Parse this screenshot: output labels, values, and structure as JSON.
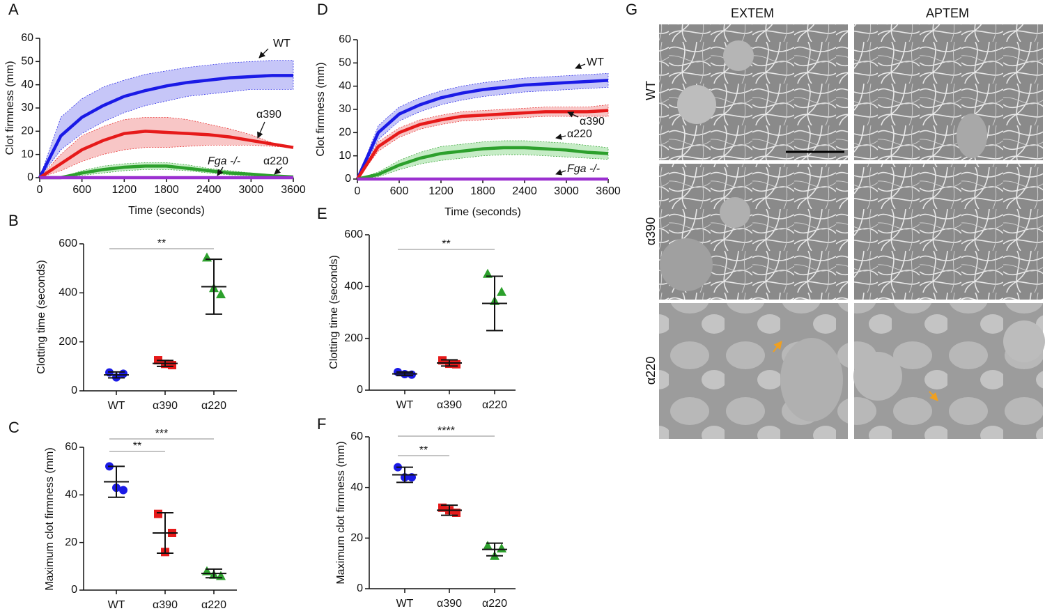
{
  "chart_data": [
    {
      "panel": "A",
      "type": "line",
      "x_label": "Time (seconds)",
      "y_label": "Clot firmness (mm)",
      "xlim": [
        0,
        3600
      ],
      "ylim": [
        0,
        60
      ],
      "xticks": [
        0,
        600,
        1200,
        1800,
        2400,
        3000,
        3600
      ],
      "yticks": [
        0,
        10,
        20,
        30,
        40,
        50,
        60
      ],
      "x": [
        0,
        300,
        600,
        900,
        1200,
        1500,
        1800,
        2100,
        2400,
        2700,
        3000,
        3300,
        3600
      ],
      "series": [
        {
          "name": "WT",
          "color": "#1a1ae6",
          "band_color": "#b3b3f5",
          "values": [
            0,
            18,
            26,
            31,
            35,
            37.5,
            39.5,
            41,
            42,
            43,
            43.5,
            44,
            44
          ],
          "band_low": [
            0,
            12,
            19,
            24,
            28,
            31,
            33,
            35,
            36,
            37,
            38,
            38,
            38
          ],
          "band_high": [
            0,
            26,
            34,
            39,
            42,
            44.5,
            46,
            47.5,
            48.5,
            49.5,
            50,
            50.5,
            50.5
          ]
        },
        {
          "name": "α390",
          "color": "#e61a1a",
          "band_color": "#f5b3b3",
          "values": [
            0,
            6,
            12,
            16,
            19,
            20,
            19.5,
            19,
            18.5,
            17.5,
            16,
            14.5,
            13
          ],
          "band_low": [
            0,
            3,
            7,
            10,
            12,
            13,
            13,
            13.5,
            14,
            14,
            14,
            13.5,
            13
          ],
          "band_high": [
            0,
            10,
            18,
            22,
            25,
            26,
            26,
            25,
            23,
            21,
            18.5,
            15,
            13
          ]
        },
        {
          "name": "α220",
          "color": "#2ca02c",
          "band_color": "#b3e6b3",
          "values": [
            0,
            0,
            2,
            3.5,
            4.5,
            5,
            5,
            4,
            3,
            2,
            1.5,
            0.8,
            0.3
          ],
          "band_low": [
            0,
            0,
            1,
            2,
            3,
            3.5,
            3.5,
            3,
            2,
            1.2,
            0.8,
            0.3,
            0
          ],
          "band_high": [
            0,
            0,
            3,
            5,
            6,
            6.5,
            6.5,
            5.5,
            4,
            3,
            2,
            1.2,
            0.5
          ]
        },
        {
          "name": "Fga -/-",
          "color": "#9b30d0",
          "values": [
            0,
            0,
            0,
            0,
            0,
            0,
            0,
            0,
            0,
            0,
            0,
            0,
            0
          ]
        }
      ]
    },
    {
      "panel": "B",
      "type": "dot",
      "y_label": "Clotting time (seconds)",
      "ylim": [
        0,
        600
      ],
      "yticks": [
        0,
        200,
        400,
        600
      ],
      "categories": [
        "WT",
        "α390",
        "α220"
      ],
      "colors": [
        "#1a1ae6",
        "#e61a1a",
        "#2ca02c"
      ],
      "markers": [
        "circle",
        "square",
        "triangle"
      ],
      "points": [
        [
          75,
          70,
          55
        ],
        [
          125,
          105,
          110
        ],
        [
          545,
          395,
          420
        ]
      ],
      "means": [
        65,
        112,
        425
      ],
      "sds": [
        12,
        12,
        112
      ],
      "significance": [
        {
          "from": 0,
          "to": 2,
          "label": "**"
        }
      ]
    },
    {
      "panel": "C",
      "type": "dot",
      "y_label": "Maximum clot firmness (mm)",
      "ylim": [
        0,
        60
      ],
      "yticks": [
        0,
        20,
        40,
        60
      ],
      "categories": [
        "WT",
        "α390",
        "α220"
      ],
      "colors": [
        "#1a1ae6",
        "#e61a1a",
        "#2ca02c"
      ],
      "markers": [
        "circle",
        "square",
        "triangle"
      ],
      "points": [
        [
          52,
          42,
          43
        ],
        [
          32,
          24,
          16
        ],
        [
          8,
          6,
          6.5
        ]
      ],
      "means": [
        45.5,
        24,
        7
      ],
      "sds": [
        6.5,
        8.5,
        1.8
      ],
      "significance": [
        {
          "from": 0,
          "to": 1,
          "label": "**"
        },
        {
          "from": 0,
          "to": 2,
          "label": "***"
        }
      ]
    },
    {
      "panel": "D",
      "type": "line",
      "x_label": "Time (seconds)",
      "y_label": "Clot firmness (mm)",
      "xlim": [
        0,
        3600
      ],
      "ylim": [
        0,
        60
      ],
      "xticks": [
        0,
        600,
        1200,
        1800,
        2400,
        3000,
        3600
      ],
      "yticks": [
        0,
        10,
        20,
        30,
        40,
        50,
        60
      ],
      "x": [
        0,
        300,
        600,
        900,
        1200,
        1500,
        1800,
        2100,
        2400,
        2700,
        3000,
        3300,
        3600
      ],
      "series": [
        {
          "name": "WT",
          "color": "#1a1ae6",
          "band_color": "#b3b3f5",
          "values": [
            0,
            20,
            28,
            32,
            35,
            37,
            38.5,
            39.5,
            40.5,
            41,
            41.5,
            42,
            42.5
          ],
          "band_low": [
            0,
            17,
            25,
            29,
            32,
            34,
            35.5,
            36.5,
            37.5,
            38,
            38.5,
            39,
            39.5
          ],
          "band_high": [
            0,
            23,
            31,
            35,
            38,
            40,
            41.5,
            42.5,
            43.5,
            44,
            44.5,
            45,
            45.5
          ]
        },
        {
          "name": "α390",
          "color": "#e61a1a",
          "band_color": "#f5b3b3",
          "values": [
            0,
            14,
            20,
            23.5,
            25.5,
            27,
            27.5,
            28,
            28.5,
            29,
            29,
            29,
            29.5
          ],
          "band_low": [
            0,
            12,
            18,
            21.5,
            23.5,
            25,
            25.5,
            26,
            26.5,
            27,
            27,
            27,
            27
          ],
          "band_high": [
            0,
            16,
            22,
            25.5,
            27.5,
            29,
            29.5,
            30,
            30.5,
            31,
            31,
            31,
            32
          ]
        },
        {
          "name": "α220",
          "color": "#2ca02c",
          "band_color": "#b3e6b3",
          "values": [
            0,
            2,
            6,
            9,
            11,
            12,
            13,
            13.5,
            13.5,
            13,
            12.5,
            11.5,
            11
          ],
          "band_low": [
            0,
            1,
            4,
            6.5,
            8,
            9,
            10,
            10.5,
            10.5,
            10,
            9.5,
            9,
            8.5
          ],
          "band_high": [
            0,
            3,
            8,
            11.5,
            14,
            15,
            16,
            16.5,
            16.5,
            16,
            15.5,
            14.5,
            13.5
          ]
        },
        {
          "name": "Fga -/-",
          "color": "#9b30d0",
          "values": [
            0,
            0,
            0,
            0,
            0,
            0,
            0,
            0,
            0,
            0,
            0,
            0,
            0
          ]
        }
      ]
    },
    {
      "panel": "E",
      "type": "dot",
      "y_label": "Clotting time (seconds)",
      "ylim": [
        0,
        600
      ],
      "yticks": [
        0,
        200,
        400,
        600
      ],
      "categories": [
        "WT",
        "α390",
        "α220"
      ],
      "colors": [
        "#1a1ae6",
        "#e61a1a",
        "#2ca02c"
      ],
      "markers": [
        "circle",
        "square",
        "triangle"
      ],
      "points": [
        [
          70,
          60,
          62
        ],
        [
          115,
          100,
          102
        ],
        [
          450,
          380,
          345
        ]
      ],
      "means": [
        63,
        105,
        335
      ],
      "sds": [
        7,
        12,
        105
      ],
      "significance": [
        {
          "from": 0,
          "to": 2,
          "label": "**"
        }
      ]
    },
    {
      "panel": "F",
      "type": "dot",
      "y_label": "Maximum clot firmness (mm)",
      "ylim": [
        0,
        60
      ],
      "yticks": [
        0,
        20,
        40,
        60
      ],
      "categories": [
        "WT",
        "α390",
        "α220"
      ],
      "colors": [
        "#1a1ae6",
        "#e61a1a",
        "#2ca02c"
      ],
      "markers": [
        "circle",
        "square",
        "triangle"
      ],
      "points": [
        [
          48,
          44,
          44
        ],
        [
          32,
          30,
          31
        ],
        [
          17,
          16,
          13
        ]
      ],
      "means": [
        45,
        31,
        15.5
      ],
      "sds": [
        3,
        2,
        2.5
      ],
      "significance": [
        {
          "from": 0,
          "to": 1,
          "label": "**"
        },
        {
          "from": 0,
          "to": 2,
          "label": "****"
        }
      ]
    }
  ],
  "micrographs": {
    "panel": "G",
    "columns": [
      "EXTEM",
      "APTEM"
    ],
    "rows": [
      "WT",
      "α390",
      "α220"
    ]
  }
}
